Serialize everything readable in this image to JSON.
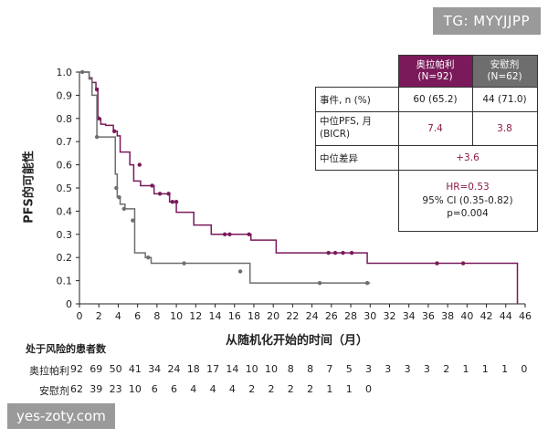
{
  "watermark_top": "TG: MYYJJPP",
  "watermark_bottom": "yes-zoty.com",
  "colors": {
    "arm_a": "#7a1a5a",
    "arm_b": "#6e6e6e"
  },
  "chart_data": {
    "type": "line",
    "title": "",
    "xlabel": "从随机化开始的时间（月）",
    "ylabel": "PFS的可能性",
    "xlim": [
      0,
      46
    ],
    "ylim": [
      0,
      1.0
    ],
    "xticks": [
      "0",
      "2",
      "4",
      "6",
      "8",
      "10",
      "12",
      "14",
      "16",
      "18",
      "20",
      "22",
      "24",
      "26",
      "28",
      "30",
      "32",
      "34",
      "36",
      "38",
      "40",
      "42",
      "44",
      "46"
    ],
    "yticks": [
      "0",
      "0.1",
      "0.2",
      "0.3",
      "0.4",
      "0.5",
      "0.6",
      "0.7",
      "0.8",
      "0.9",
      "1.0"
    ],
    "series": [
      {
        "name": "奥拉帕利",
        "color": "#7a1a5a",
        "step_x": [
          0,
          1.0,
          1.3,
          1.7,
          1.9,
          2.2,
          2.7,
          3.5,
          3.9,
          4.2,
          5.2,
          5.6,
          6.3,
          7.7,
          9.3,
          10.0,
          11.8,
          13.6,
          17.7,
          20.3,
          29.7,
          45.2,
          45.2
        ],
        "step_y": [
          1.0,
          0.975,
          0.955,
          0.93,
          0.8,
          0.775,
          0.77,
          0.745,
          0.725,
          0.655,
          0.6,
          0.53,
          0.51,
          0.475,
          0.44,
          0.395,
          0.34,
          0.3,
          0.275,
          0.22,
          0.175,
          0.175,
          0
        ],
        "censor_x": [
          1.8,
          2.0,
          3.6,
          6.2,
          7.5,
          8.3,
          9.2,
          9.6,
          10.0,
          15.0,
          15.5,
          17.5,
          25.7,
          26.4,
          27.2,
          28.1,
          36.9,
          39.6
        ],
        "censor_y": [
          0.925,
          0.8,
          0.745,
          0.6,
          0.51,
          0.475,
          0.475,
          0.44,
          0.44,
          0.3,
          0.3,
          0.3,
          0.22,
          0.22,
          0.22,
          0.22,
          0.175,
          0.175
        ]
      },
      {
        "name": "安慰剂",
        "color": "#6e6e6e",
        "step_x": [
          0,
          1.0,
          1.3,
          1.8,
          3.7,
          3.9,
          4.2,
          4.7,
          5.7,
          6.8,
          7.4,
          17.6,
          30.0
        ],
        "step_y": [
          1.0,
          0.97,
          0.9,
          0.72,
          0.56,
          0.46,
          0.43,
          0.41,
          0.22,
          0.2,
          0.175,
          0.09,
          0.09
        ],
        "censor_x": [
          0.3,
          1.8,
          3.8,
          4.1,
          4.6,
          5.5,
          7.1,
          10.8,
          16.6,
          24.8,
          29.7
        ],
        "censor_y": [
          1.0,
          0.72,
          0.5,
          0.46,
          0.41,
          0.36,
          0.2,
          0.175,
          0.14,
          0.09,
          0.09
        ]
      }
    ]
  },
  "risk_table": {
    "title": "处于风险的患者数",
    "rows": [
      {
        "name": "奥拉帕利",
        "values": [
          "92",
          "69",
          "50",
          "41",
          "34",
          "24",
          "18",
          "17",
          "14",
          "10",
          "10",
          "8",
          "8",
          "7",
          "5",
          "3",
          "3",
          "3",
          "3",
          "2",
          "1",
          "1",
          "1",
          "0"
        ]
      },
      {
        "name": "安慰剂",
        "values": [
          "62",
          "39",
          "23",
          "10",
          "6",
          "6",
          "4",
          "4",
          "4",
          "2",
          "2",
          "2",
          "2",
          "1",
          "1",
          "0"
        ]
      }
    ]
  },
  "stats_table": {
    "arm_a_label": "奥拉帕利\n(N=92)",
    "arm_b_label": "安慰剂\n(N=62)",
    "events_label": "事件, n (%)",
    "events_a": "60 (65.2)",
    "events_b": "44 (71.0)",
    "median_label": "中位PFS, 月\n(BICR)",
    "median_a": "7.4",
    "median_b": "3.8",
    "diff_label": "中位差异",
    "diff_value": "+3.6",
    "hr": "HR=0.53",
    "ci": "95% CI (0.35-0.82)",
    "p": "p=0.004"
  }
}
